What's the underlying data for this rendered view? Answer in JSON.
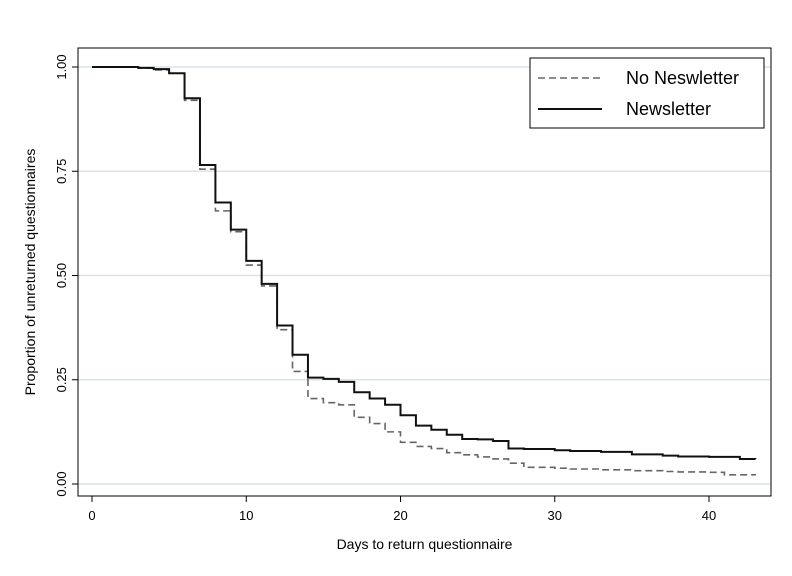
{
  "chart_data": {
    "type": "line",
    "step": true,
    "title": "",
    "xlabel": "Days to return questionnaire",
    "ylabel": "Proportion of unreturned questionnaires",
    "xlim": [
      0,
      43
    ],
    "ylim": [
      0,
      1
    ],
    "x_ticks": [
      0,
      10,
      20,
      30,
      40
    ],
    "y_ticks": [
      0.0,
      0.25,
      0.5,
      0.75,
      1.0
    ],
    "x_tick_labels": [
      "0",
      "10",
      "20",
      "30",
      "40"
    ],
    "y_tick_labels": [
      "0.00",
      "0.25",
      "0.50",
      "0.75",
      "1.00"
    ],
    "grid": "horizontal",
    "legend_position": "top-right",
    "series": [
      {
        "name": "No Neswletter",
        "style": "dashed",
        "color": "#666666",
        "x": [
          0,
          3,
          4,
          5,
          6,
          7,
          8,
          9,
          10,
          11,
          12,
          13,
          14,
          15,
          16,
          17,
          18,
          19,
          20,
          21,
          22,
          23,
          24,
          25,
          26,
          27,
          28,
          30,
          31,
          33,
          35,
          37,
          38,
          40,
          41,
          43
        ],
        "y": [
          1.0,
          0.997,
          0.993,
          0.985,
          0.92,
          0.755,
          0.655,
          0.605,
          0.525,
          0.475,
          0.37,
          0.27,
          0.205,
          0.195,
          0.19,
          0.16,
          0.145,
          0.125,
          0.1,
          0.09,
          0.085,
          0.075,
          0.07,
          0.065,
          0.06,
          0.05,
          0.04,
          0.038,
          0.036,
          0.034,
          0.032,
          0.03,
          0.029,
          0.028,
          0.022,
          0.021
        ]
      },
      {
        "name": "Newsletter",
        "style": "solid",
        "color": "#111111",
        "x": [
          0,
          3,
          4,
          5,
          6,
          7,
          8,
          9,
          10,
          11,
          12,
          13,
          14,
          15,
          16,
          17,
          18,
          19,
          20,
          21,
          22,
          23,
          24,
          25,
          26,
          27,
          28,
          30,
          31,
          33,
          35,
          37,
          38,
          40,
          42,
          43
        ],
        "y": [
          1.0,
          0.998,
          0.995,
          0.985,
          0.925,
          0.765,
          0.675,
          0.61,
          0.535,
          0.48,
          0.38,
          0.31,
          0.255,
          0.252,
          0.245,
          0.22,
          0.205,
          0.19,
          0.165,
          0.14,
          0.13,
          0.118,
          0.108,
          0.107,
          0.103,
          0.085,
          0.084,
          0.081,
          0.079,
          0.077,
          0.071,
          0.068,
          0.066,
          0.065,
          0.06,
          0.059
        ]
      }
    ]
  }
}
